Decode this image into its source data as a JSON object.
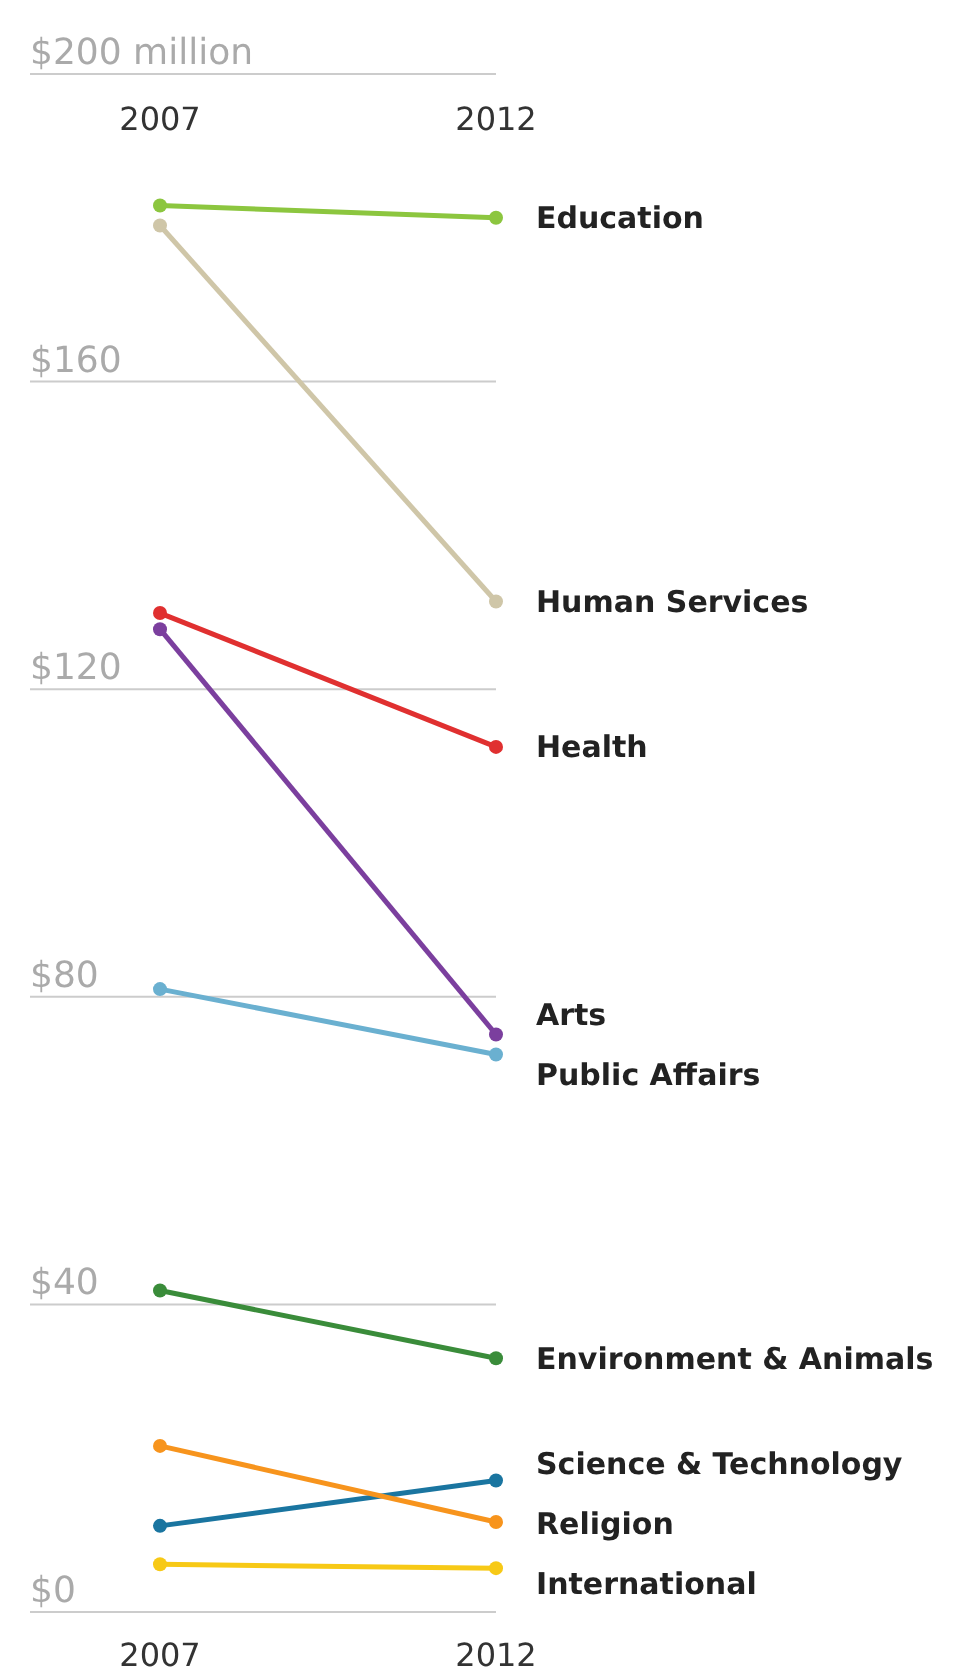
{
  "chart_data": {
    "type": "line",
    "categories": [
      "2007",
      "2012"
    ],
    "ylim": [
      0,
      200
    ],
    "yticks": [
      {
        "value": 0,
        "label": "$0"
      },
      {
        "value": 40,
        "label": "$40"
      },
      {
        "value": 80,
        "label": "$80"
      },
      {
        "value": 120,
        "label": "$120"
      },
      {
        "value": 160,
        "label": "$160"
      },
      {
        "value": 200,
        "label": "$200 million"
      }
    ],
    "grid": "y",
    "marker": "circle",
    "line_style": "solid",
    "series": [
      {
        "name": "Education",
        "color": "#8cc63f",
        "values": [
          182.9,
          181.3
        ]
      },
      {
        "name": "Human Services",
        "color": "#cfc6a8",
        "values": [
          180.3,
          131.4
        ]
      },
      {
        "name": "Health",
        "color": "#e03030",
        "values": [
          129.9,
          112.5
        ]
      },
      {
        "name": "Arts",
        "color": "#7b3f9e",
        "values": [
          127.8,
          75.1
        ]
      },
      {
        "name": "Public Affairs",
        "color": "#6ab0d0",
        "values": [
          81.0,
          72.5
        ]
      },
      {
        "name": "Environment & Animals",
        "color": "#3a8c3a",
        "values": [
          41.8,
          33.0
        ]
      },
      {
        "name": "Science & Technology",
        "color": "#1a75a0",
        "values": [
          11.2,
          17.1
        ]
      },
      {
        "name": "Religion",
        "color": "#f7941d",
        "values": [
          21.6,
          11.7
        ]
      },
      {
        "name": "International",
        "color": "#f7c916",
        "values": [
          6.2,
          5.7
        ]
      }
    ]
  }
}
